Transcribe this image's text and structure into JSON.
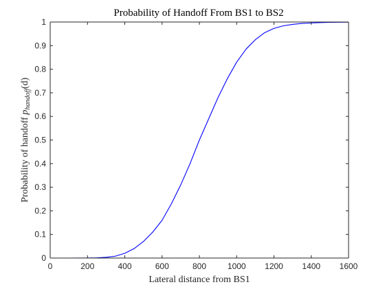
{
  "chart_data": {
    "type": "line",
    "title": "Probability of Handoff From BS1 to BS2",
    "xlabel": "Lateral distance from BS1",
    "ylabel": {
      "prefix": "Probability of handoff ",
      "symbol": "p",
      "subscript": "handoff",
      "suffix": "(d)"
    },
    "xlim": [
      0,
      1600
    ],
    "ylim": [
      0,
      1
    ],
    "xticks": [
      0,
      200,
      400,
      600,
      800,
      1000,
      1200,
      1400,
      1600
    ],
    "xtick_labels": [
      "0",
      "200",
      "400",
      "600",
      "800",
      "1000",
      "1200",
      "1400",
      "1600"
    ],
    "yticks": [
      0,
      0.1,
      0.2,
      0.3,
      0.4,
      0.5,
      0.6,
      0.7,
      0.8,
      0.9,
      1
    ],
    "ytick_labels": [
      "0",
      "0.1",
      "0.2",
      "0.3",
      "0.4",
      "0.5",
      "0.6",
      "0.7",
      "0.8",
      "0.9",
      "1"
    ],
    "grid": false,
    "series": [
      {
        "color": "#0000ff",
        "x": [
          0,
          100,
          200,
          250,
          300,
          350,
          400,
          450,
          500,
          550,
          600,
          650,
          700,
          750,
          800,
          850,
          900,
          950,
          1000,
          1050,
          1100,
          1150,
          1200,
          1250,
          1300,
          1350,
          1400,
          1450,
          1500,
          1550,
          1600
        ],
        "y": [
          0,
          0,
          0.0002,
          0.001,
          0.003,
          0.008,
          0.02,
          0.04,
          0.07,
          0.11,
          0.16,
          0.23,
          0.31,
          0.4,
          0.5,
          0.59,
          0.68,
          0.76,
          0.83,
          0.885,
          0.925,
          0.955,
          0.973,
          0.984,
          0.99,
          0.994,
          0.996,
          0.9975,
          0.9985,
          0.999,
          0.9995
        ]
      }
    ]
  }
}
